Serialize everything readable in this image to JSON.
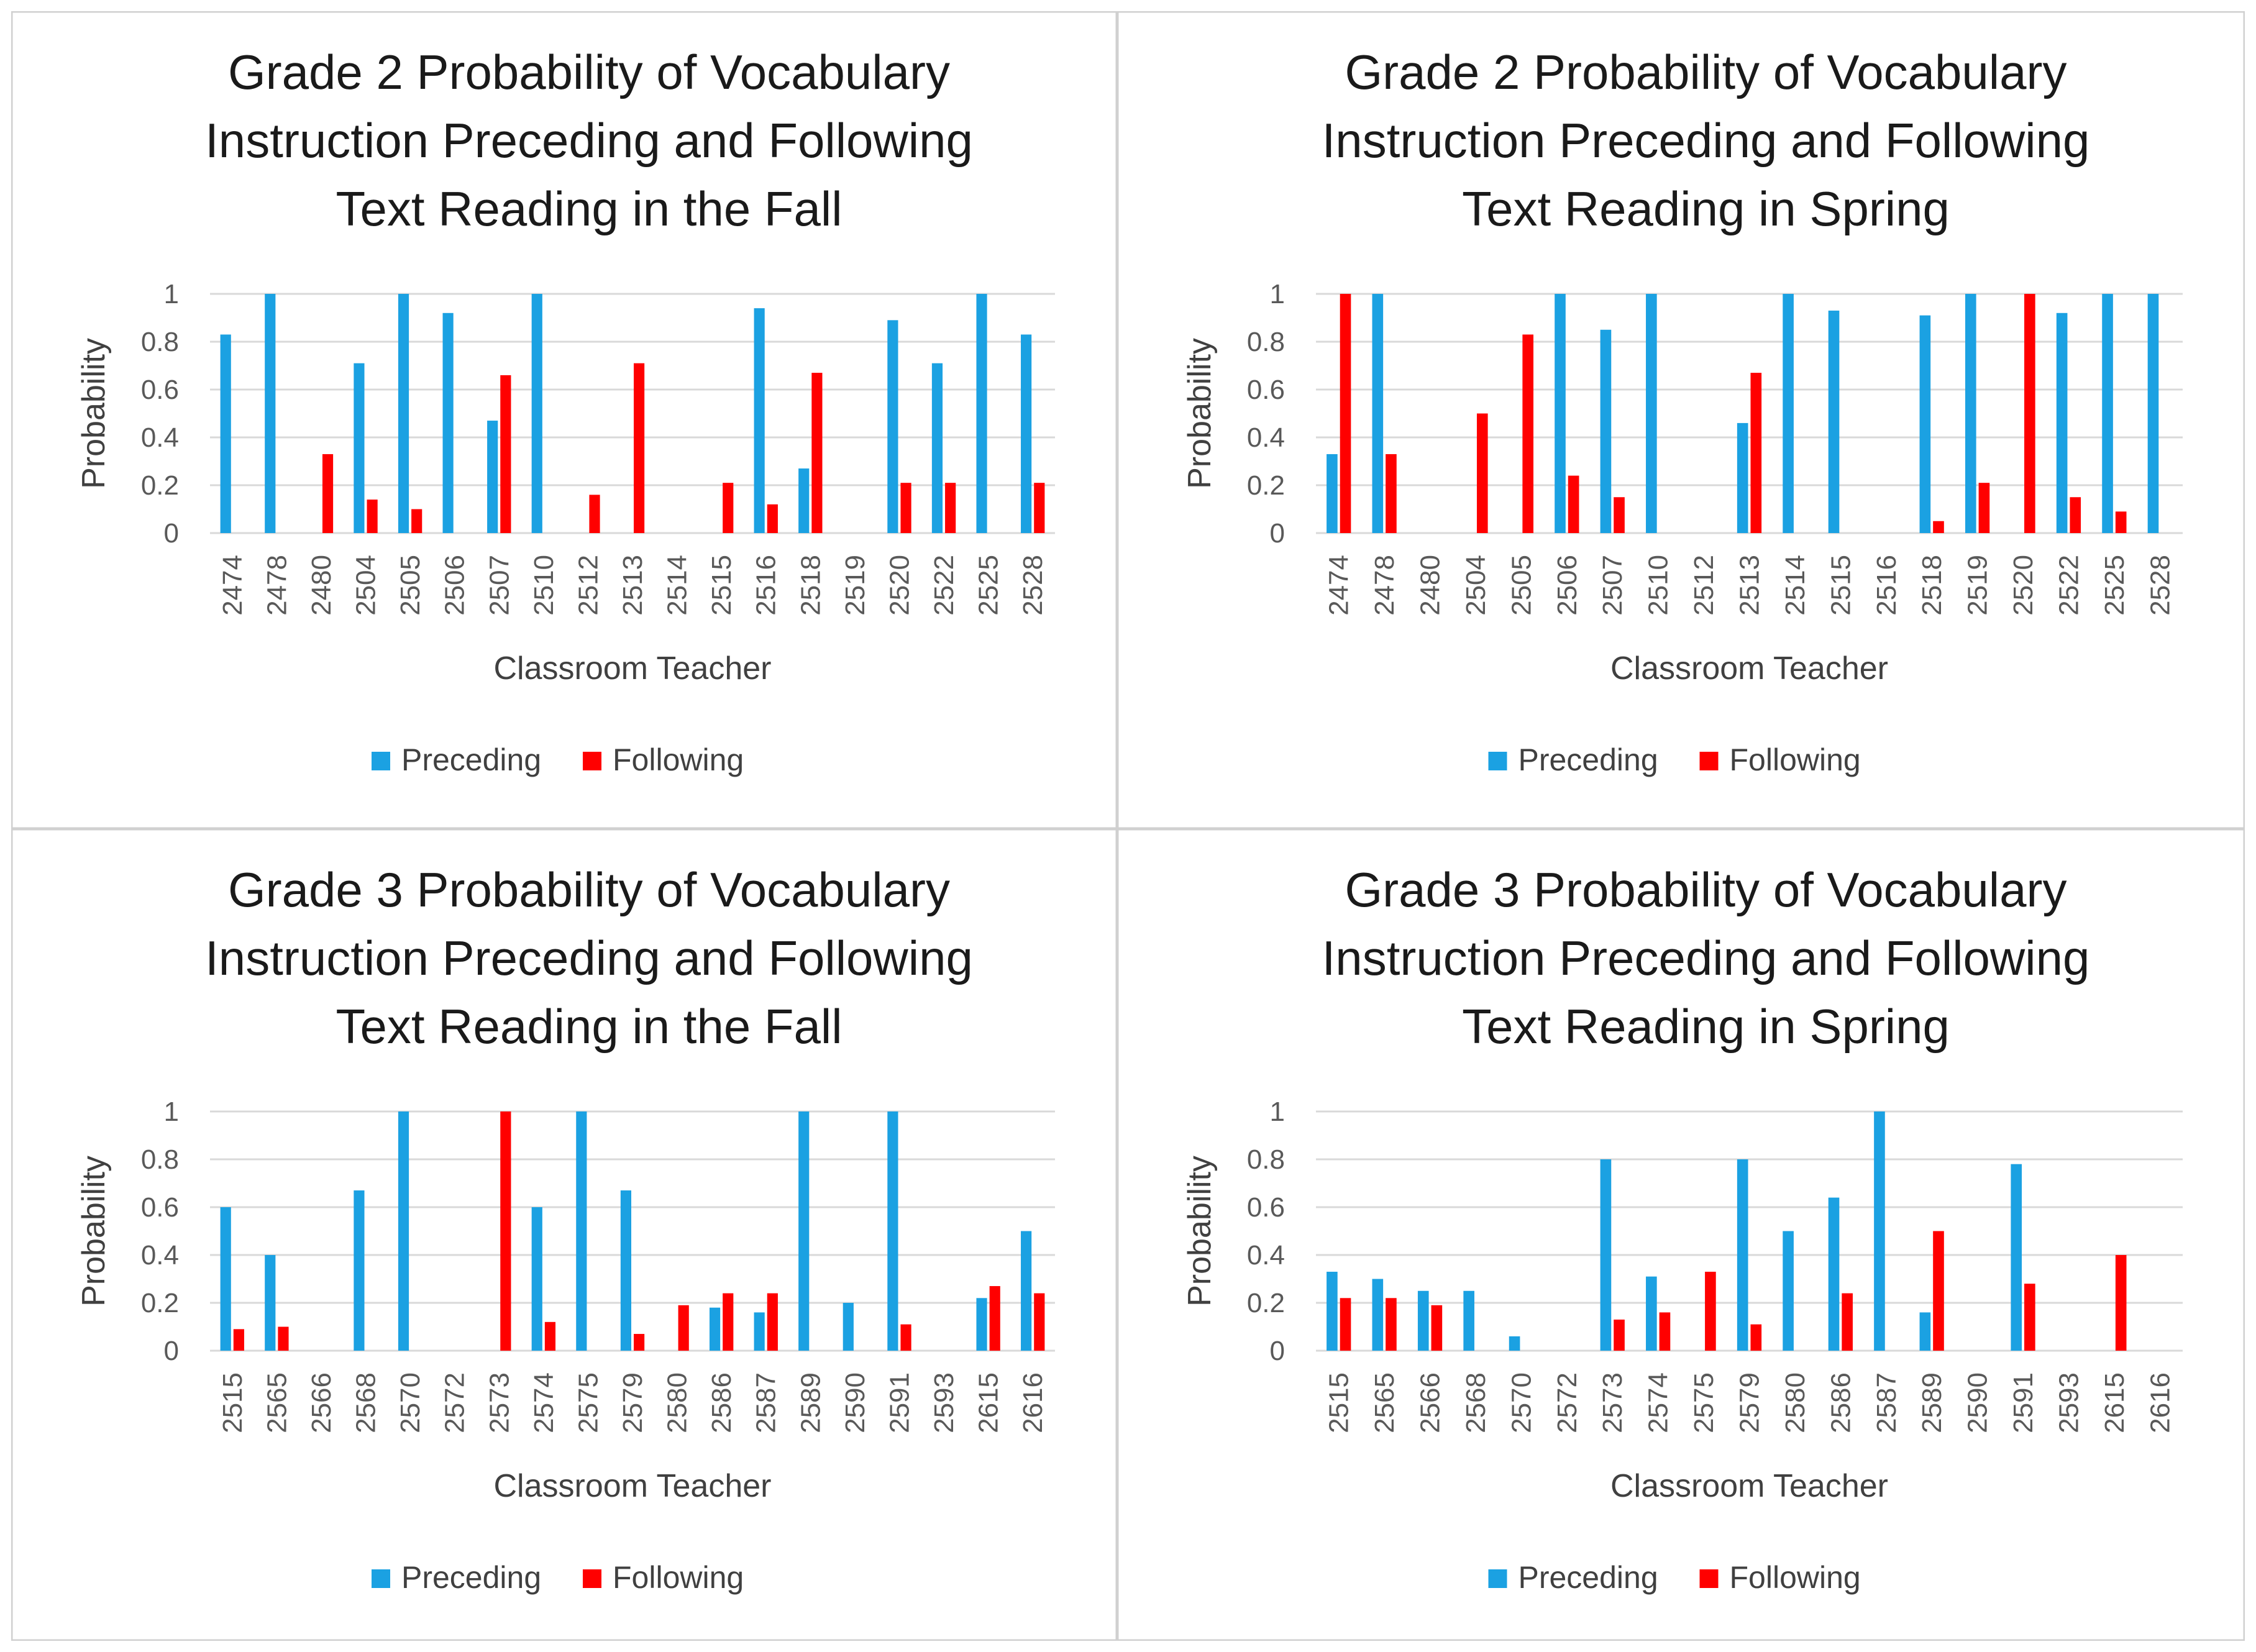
{
  "colors": {
    "preceding": "#1BA1E2",
    "following": "#FF0000",
    "grid": "#D9D9D9",
    "border": "#D0D0D0"
  },
  "chart_data": [
    {
      "type": "bar",
      "title_lines": [
        "Grade 2 Probability of Vocabulary",
        "Instruction Preceding and Following",
        "Text Reading in the Fall"
      ],
      "xlabel": "Classroom Teacher",
      "ylabel": "Probability",
      "ylim": [
        0,
        1
      ],
      "yticks": [
        "0",
        "0.2",
        "0.4",
        "0.6",
        "0.8",
        "1"
      ],
      "categories": [
        "2474",
        "2478",
        "2480",
        "2504",
        "2505",
        "2506",
        "2507",
        "2510",
        "2512",
        "2513",
        "2514",
        "2515",
        "2516",
        "2518",
        "2519",
        "2520",
        "2522",
        "2525",
        "2528"
      ],
      "series": [
        {
          "name": "Preceding",
          "values": [
            0.83,
            1,
            0,
            0.71,
            1,
            0.92,
            0.47,
            1,
            0,
            0,
            0,
            0,
            0.94,
            0.27,
            0,
            0.89,
            0.71,
            1,
            0.83
          ]
        },
        {
          "name": "Following",
          "values": [
            0,
            0,
            0.33,
            0.14,
            0.1,
            0,
            0.66,
            0,
            0.16,
            0.71,
            0,
            0.21,
            0.12,
            0.67,
            0,
            0.21,
            0.21,
            0,
            0.21
          ]
        }
      ],
      "legend": [
        "Preceding",
        "Following"
      ],
      "legend_position": "bottom"
    },
    {
      "type": "bar",
      "title_lines": [
        "Grade 2 Probability of Vocabulary",
        "Instruction Preceding and Following",
        "Text Reading in Spring"
      ],
      "xlabel": "Classroom Teacher",
      "ylabel": "Probability",
      "ylim": [
        0,
        1
      ],
      "yticks": [
        "0",
        "0.2",
        "0.4",
        "0.6",
        "0.8",
        "1"
      ],
      "categories": [
        "2474",
        "2478",
        "2480",
        "2504",
        "2505",
        "2506",
        "2507",
        "2510",
        "2512",
        "2513",
        "2514",
        "2515",
        "2516",
        "2518",
        "2519",
        "2520",
        "2522",
        "2525",
        "2528"
      ],
      "series": [
        {
          "name": "Preceding",
          "values": [
            0.33,
            1,
            0,
            0,
            0,
            1,
            0.85,
            1,
            0,
            0.46,
            1,
            0.93,
            0,
            0.91,
            1,
            0,
            0.92,
            1,
            1
          ]
        },
        {
          "name": "Following",
          "values": [
            1,
            0.33,
            0,
            0.5,
            0.83,
            0.24,
            0.15,
            0,
            0,
            0.67,
            0,
            0,
            0,
            0.05,
            0.21,
            1,
            0.15,
            0.09,
            0
          ]
        }
      ],
      "legend": [
        "Preceding",
        "Following"
      ],
      "legend_position": "bottom"
    },
    {
      "type": "bar",
      "title_lines": [
        "Grade 3 Probability of Vocabulary",
        "Instruction Preceding and Following",
        "Text Reading in the Fall"
      ],
      "xlabel": "Classroom Teacher",
      "ylabel": "Probability",
      "ylim": [
        0,
        1
      ],
      "yticks": [
        "0",
        "0.2",
        "0.4",
        "0.6",
        "0.8",
        "1"
      ],
      "categories": [
        "2515",
        "2565",
        "2566",
        "2568",
        "2570",
        "2572",
        "2573",
        "2574",
        "2575",
        "2579",
        "2580",
        "2586",
        "2587",
        "2589",
        "2590",
        "2591",
        "2593",
        "2615",
        "2616"
      ],
      "series": [
        {
          "name": "Preceding",
          "values": [
            0.6,
            0.4,
            0,
            0.67,
            1,
            0,
            0,
            0.6,
            1,
            0.67,
            0,
            0.18,
            0.16,
            1,
            0.2,
            1,
            0,
            0.22,
            0.5
          ]
        },
        {
          "name": "Following",
          "values": [
            0.09,
            0.1,
            0,
            0,
            0,
            0,
            1,
            0.12,
            0,
            0.07,
            0.19,
            0.24,
            0.24,
            0,
            0,
            0.11,
            0,
            0.27,
            0.24
          ]
        }
      ],
      "legend": [
        "Preceding",
        "Following"
      ],
      "legend_position": "bottom"
    },
    {
      "type": "bar",
      "title_lines": [
        "Grade 3 Probability of Vocabulary",
        "Instruction Preceding and Following",
        "Text Reading in Spring"
      ],
      "xlabel": "Classroom Teacher",
      "ylabel": "Probability",
      "ylim": [
        0,
        1
      ],
      "yticks": [
        "0",
        "0.2",
        "0.4",
        "0.6",
        "0.8",
        "1"
      ],
      "categories": [
        "2515",
        "2565",
        "2566",
        "2568",
        "2570",
        "2572",
        "2573",
        "2574",
        "2575",
        "2579",
        "2580",
        "2586",
        "2587",
        "2589",
        "2590",
        "2591",
        "2593",
        "2615",
        "2616"
      ],
      "series": [
        {
          "name": "Preceding",
          "values": [
            0.33,
            0.3,
            0.25,
            0.25,
            0.06,
            0,
            0.8,
            0.31,
            0,
            0.8,
            0.5,
            0.64,
            1,
            0.16,
            0,
            0.78,
            0,
            0,
            0
          ]
        },
        {
          "name": "Following",
          "values": [
            0.22,
            0.22,
            0.19,
            0,
            0,
            0,
            0.13,
            0.16,
            0.33,
            0.11,
            0,
            0.24,
            0,
            0.5,
            0,
            0.28,
            0,
            0.4,
            0
          ]
        }
      ],
      "legend": [
        "Preceding",
        "Following"
      ],
      "legend_position": "bottom"
    }
  ]
}
